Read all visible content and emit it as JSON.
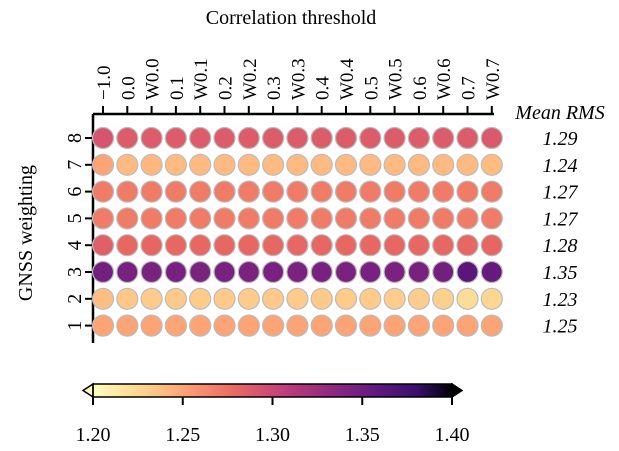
{
  "chart_data": {
    "type": "heatmap",
    "title": "",
    "xlabel": "Correlation threshold",
    "ylabel": "GNSS weighting",
    "x_categories": [
      "−1.0",
      "0.0",
      "W0.0",
      "0.1",
      "W0.1",
      "0.2",
      "W0.2",
      "0.3",
      "W0.3",
      "0.4",
      "W0.4",
      "0.5",
      "W0.5",
      "0.6",
      "W0.6",
      "0.7",
      "W0.7"
    ],
    "y_categories": [
      "8",
      "7",
      "6",
      "5",
      "4",
      "3",
      "2",
      "1"
    ],
    "values": [
      [
        1.292,
        1.287,
        1.287,
        1.287,
        1.287,
        1.287,
        1.287,
        1.287,
        1.287,
        1.287,
        1.287,
        1.287,
        1.287,
        1.287,
        1.287,
        1.287,
        1.289
      ],
      [
        1.25,
        1.24,
        1.241,
        1.24,
        1.24,
        1.24,
        1.24,
        1.24,
        1.24,
        1.24,
        1.24,
        1.24,
        1.24,
        1.24,
        1.24,
        1.24,
        1.239
      ],
      [
        1.27,
        1.27,
        1.27,
        1.27,
        1.27,
        1.27,
        1.27,
        1.27,
        1.27,
        1.27,
        1.27,
        1.27,
        1.27,
        1.27,
        1.27,
        1.27,
        1.27
      ],
      [
        1.27,
        1.27,
        1.27,
        1.27,
        1.27,
        1.27,
        1.27,
        1.27,
        1.27,
        1.27,
        1.27,
        1.27,
        1.27,
        1.27,
        1.27,
        1.27,
        1.27
      ],
      [
        1.285,
        1.28,
        1.281,
        1.28,
        1.28,
        1.28,
        1.28,
        1.28,
        1.28,
        1.28,
        1.28,
        1.28,
        1.28,
        1.28,
        1.28,
        1.28,
        1.281
      ],
      [
        1.348,
        1.345,
        1.344,
        1.345,
        1.344,
        1.345,
        1.344,
        1.345,
        1.344,
        1.345,
        1.344,
        1.345,
        1.344,
        1.345,
        1.348,
        1.362,
        1.355
      ],
      [
        1.238,
        1.233,
        1.231,
        1.232,
        1.231,
        1.232,
        1.231,
        1.232,
        1.231,
        1.232,
        1.231,
        1.231,
        1.23,
        1.23,
        1.228,
        1.222,
        1.225
      ],
      [
        1.25,
        1.25,
        1.25,
        1.25,
        1.25,
        1.25,
        1.25,
        1.25,
        1.25,
        1.25,
        1.25,
        1.25,
        1.25,
        1.25,
        1.25,
        1.25,
        1.25
      ]
    ],
    "row_summary_header": "Mean RMS",
    "row_summary": [
      "1.29",
      "1.24",
      "1.27",
      "1.27",
      "1.28",
      "1.35",
      "1.23",
      "1.25"
    ],
    "colorbar": {
      "colormap": "magma_r",
      "range": [
        1.2,
        1.4
      ],
      "ticks": [
        "1.20",
        "1.25",
        "1.30",
        "1.35",
        "1.40"
      ],
      "extend": "both"
    },
    "colors": {
      "marker_edge": "#bbbbbb",
      "axis": "#000000"
    },
    "legend": "none",
    "grid": false
  }
}
